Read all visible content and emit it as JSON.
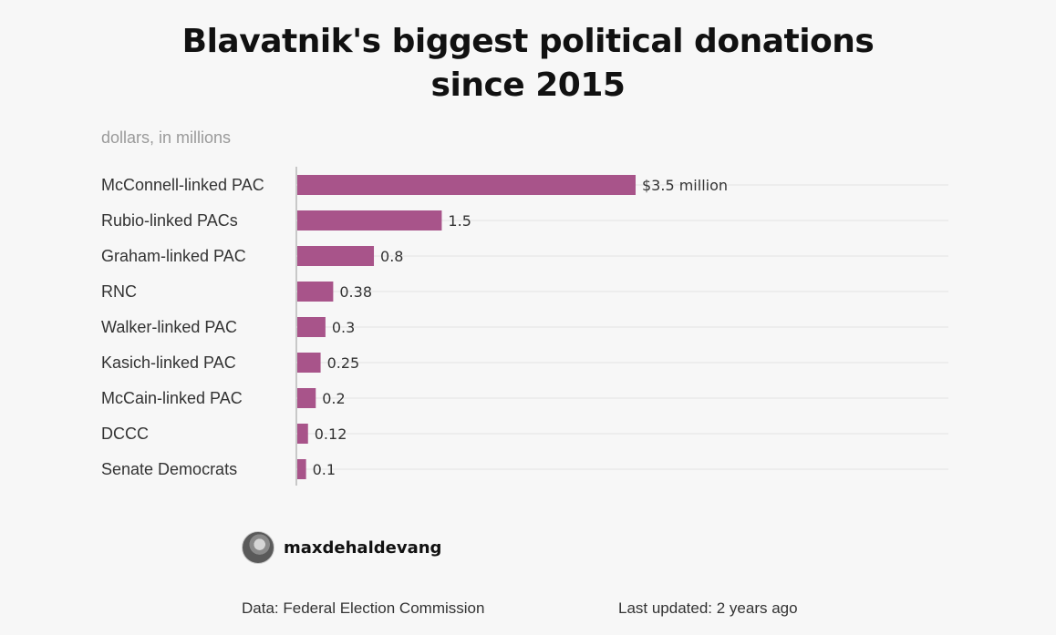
{
  "chart_data": {
    "type": "bar",
    "orientation": "horizontal",
    "title": "Blavatnik's biggest political donations since 2015",
    "subtitle": "dollars, in millions",
    "categories": [
      "McConnell-linked PAC",
      "Rubio-linked PACs",
      "Graham-linked PAC",
      "RNC",
      "Walker-linked PAC",
      "Kasich-linked PAC",
      "McCain-linked PAC",
      "DCCC",
      "Senate Democrats"
    ],
    "values": [
      3.5,
      1.5,
      0.8,
      0.38,
      0.3,
      0.25,
      0.2,
      0.12,
      0.1
    ],
    "value_labels": [
      "$3.5 million",
      "1.5",
      "0.8",
      "0.38",
      "0.3",
      "0.25",
      "0.2",
      "0.12",
      "0.1"
    ],
    "bar_color": "#a8548a",
    "xlim": [
      0,
      6.7
    ],
    "grid": true
  },
  "author": {
    "name": "maxdehaldevang"
  },
  "footer": {
    "source": "Data: Federal Election Commission",
    "updated": "Last updated: 2 years ago"
  }
}
